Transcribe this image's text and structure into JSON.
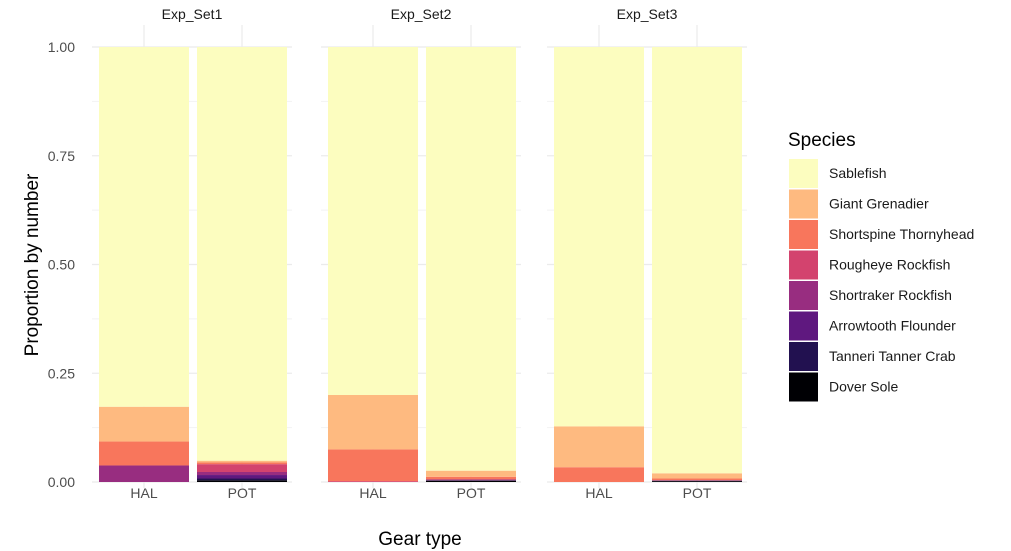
{
  "chart_data": {
    "type": "bar",
    "stacked": true,
    "ylabel": "Proportion by number",
    "xlabel": "Gear type",
    "ylim": [
      0,
      1
    ],
    "yticks": [
      "0.00",
      "0.25",
      "0.50",
      "0.75",
      "1.00"
    ],
    "categories": [
      "HAL",
      "POT"
    ],
    "legend": {
      "title": "Species",
      "placement": "right"
    },
    "grid": true,
    "species": [
      {
        "name": "Sablefish",
        "color": "#FCFDBF"
      },
      {
        "name": "Giant Grenadier",
        "color": "#FEBA80"
      },
      {
        "name": "Shortspine Thornyhead",
        "color": "#F8765C"
      },
      {
        "name": "Rougheye Rockfish",
        "color": "#D3436E"
      },
      {
        "name": "Shortraker Rockfish",
        "color": "#982D80"
      },
      {
        "name": "Arrowtooth Flounder",
        "color": "#5F187F"
      },
      {
        "name": "Tanneri Tanner Crab",
        "color": "#221150"
      },
      {
        "name": "Dover Sole",
        "color": "#000004"
      }
    ],
    "panels": [
      {
        "name": "Exp_Set1",
        "bars": [
          {
            "category": "HAL",
            "values": {
              "Dover Sole": 0.0,
              "Tanneri Tanner Crab": 0.0,
              "Arrowtooth Flounder": 0.0,
              "Shortraker Rockfish": 0.038,
              "Rougheye Rockfish": 0.0,
              "Shortspine Thornyhead": 0.055,
              "Giant Grenadier": 0.08,
              "Sablefish": 0.827
            }
          },
          {
            "category": "POT",
            "values": {
              "Dover Sole": 0.004,
              "Tanneri Tanner Crab": 0.004,
              "Arrowtooth Flounder": 0.008,
              "Shortraker Rockfish": 0.007,
              "Rougheye Rockfish": 0.018,
              "Shortspine Thornyhead": 0.004,
              "Giant Grenadier": 0.004,
              "Sablefish": 0.951
            }
          }
        ]
      },
      {
        "name": "Exp_Set2",
        "bars": [
          {
            "category": "HAL",
            "values": {
              "Dover Sole": 0.0,
              "Tanneri Tanner Crab": 0.0,
              "Arrowtooth Flounder": 0.0,
              "Shortraker Rockfish": 0.0,
              "Rougheye Rockfish": 0.002,
              "Shortspine Thornyhead": 0.073,
              "Giant Grenadier": 0.125,
              "Sablefish": 0.8
            }
          },
          {
            "category": "POT",
            "values": {
              "Dover Sole": 0.003,
              "Tanneri Tanner Crab": 0.001,
              "Arrowtooth Flounder": 0.0,
              "Shortraker Rockfish": 0.002,
              "Rougheye Rockfish": 0.0,
              "Shortspine Thornyhead": 0.006,
              "Giant Grenadier": 0.014,
              "Sablefish": 0.974
            }
          }
        ]
      },
      {
        "name": "Exp_Set3",
        "bars": [
          {
            "category": "HAL",
            "values": {
              "Dover Sole": 0.0,
              "Tanneri Tanner Crab": 0.0,
              "Arrowtooth Flounder": 0.0,
              "Shortraker Rockfish": 0.0,
              "Rougheye Rockfish": 0.0,
              "Shortspine Thornyhead": 0.034,
              "Giant Grenadier": 0.094,
              "Sablefish": 0.872
            }
          },
          {
            "category": "POT",
            "values": {
              "Dover Sole": 0.002,
              "Tanneri Tanner Crab": 0.001,
              "Arrowtooth Flounder": 0.0,
              "Shortraker Rockfish": 0.001,
              "Rougheye Rockfish": 0.0,
              "Shortspine Thornyhead": 0.004,
              "Giant Grenadier": 0.012,
              "Sablefish": 0.98
            }
          }
        ]
      }
    ]
  }
}
